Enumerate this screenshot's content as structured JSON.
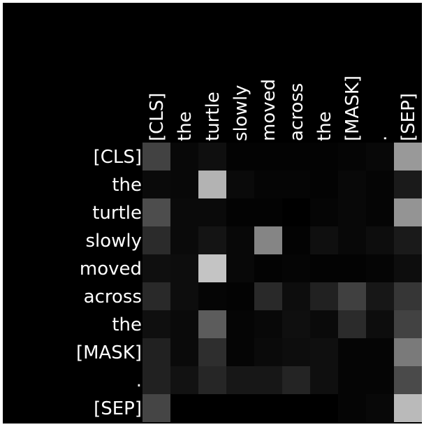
{
  "chart_data": {
    "type": "heatmap",
    "title": "",
    "xlabel": "",
    "ylabel": "",
    "x_tokens": [
      "[CLS]",
      "the",
      "turtle",
      "slowly",
      "moved",
      "across",
      "the",
      "[MASK]",
      ".",
      "[SEP]"
    ],
    "y_tokens": [
      "[CLS]",
      "the",
      "turtle",
      "slowly",
      "moved",
      "across",
      "the",
      "[MASK]",
      ".",
      "[SEP]"
    ],
    "value_range": [
      0,
      1
    ],
    "colormap": "grayscale (black = 0, white = 1)",
    "grid": false,
    "legend": "none",
    "values": [
      [
        0.26,
        0.03,
        0.06,
        0.01,
        0.01,
        0.01,
        0.01,
        0.02,
        0.03,
        0.6
      ],
      [
        0.04,
        0.03,
        0.7,
        0.04,
        0.02,
        0.02,
        0.01,
        0.03,
        0.02,
        0.1
      ],
      [
        0.3,
        0.04,
        0.04,
        0.01,
        0.01,
        0.0,
        0.02,
        0.03,
        0.02,
        0.58
      ],
      [
        0.17,
        0.04,
        0.08,
        0.03,
        0.52,
        0.01,
        0.06,
        0.03,
        0.05,
        0.1
      ],
      [
        0.06,
        0.05,
        0.77,
        0.03,
        0.01,
        0.02,
        0.01,
        0.01,
        0.02,
        0.05
      ],
      [
        0.16,
        0.05,
        0.02,
        0.01,
        0.16,
        0.05,
        0.13,
        0.25,
        0.09,
        0.21
      ],
      [
        0.06,
        0.04,
        0.36,
        0.02,
        0.03,
        0.06,
        0.04,
        0.17,
        0.05,
        0.26
      ],
      [
        0.13,
        0.04,
        0.18,
        0.02,
        0.04,
        0.05,
        0.06,
        0.02,
        0.02,
        0.48
      ],
      [
        0.13,
        0.07,
        0.15,
        0.09,
        0.09,
        0.14,
        0.06,
        0.02,
        0.02,
        0.29
      ],
      [
        0.27,
        0.0,
        0.0,
        0.0,
        0.0,
        0.0,
        0.0,
        0.02,
        0.03,
        0.73
      ]
    ]
  }
}
